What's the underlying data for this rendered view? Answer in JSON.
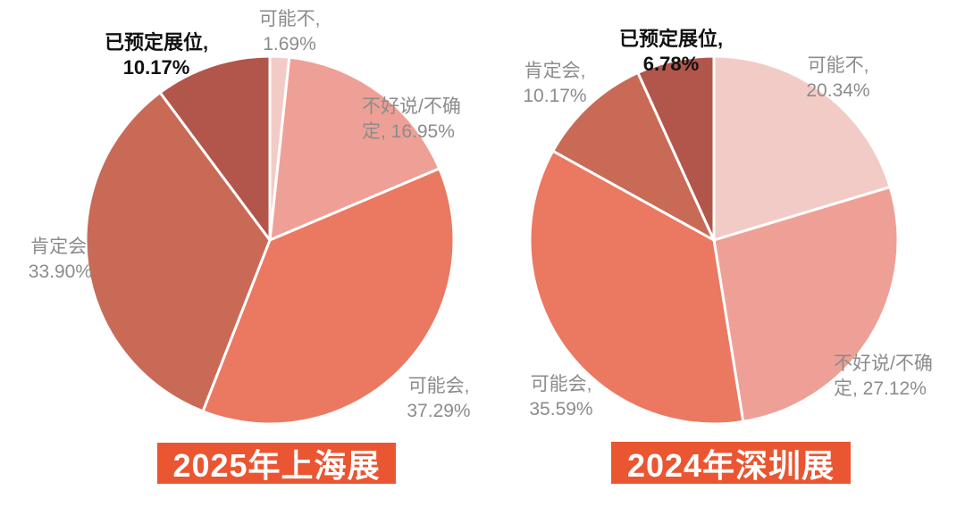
{
  "page": {
    "background": "#ffffff"
  },
  "colors": {
    "banner_background": "#EA5532",
    "banner_text": "#FFFFFF",
    "label_gray": "#8C8C8C",
    "label_emphasis": "#111111",
    "slice_divider": "#FFFFFF"
  },
  "chart_data": [
    {
      "type": "pie",
      "title": "2025年上海展",
      "start_angle_deg": 0,
      "direction": "clockwise",
      "label_position": "outside",
      "slices": [
        {
          "label": "可能不",
          "value_pct": 1.69,
          "display_lines": [
            "可能不,",
            "1.69%"
          ],
          "color": "#F3CBC6",
          "emphasis": false
        },
        {
          "label": "不好说/不确定",
          "value_pct": 16.95,
          "display_lines": [
            "不好说/不确",
            "定, 16.95%"
          ],
          "color": "#EFA096",
          "emphasis": false
        },
        {
          "label": "可能会",
          "value_pct": 37.29,
          "display_lines": [
            "可能会,",
            "37.29%"
          ],
          "color": "#EB7861",
          "emphasis": false
        },
        {
          "label": "肯定会",
          "value_pct": 33.9,
          "display_lines": [
            "肯定会,",
            "33.90%"
          ],
          "color": "#C96A57",
          "emphasis": false
        },
        {
          "label": "已预定展位",
          "value_pct": 10.17,
          "display_lines": [
            "已预定展位,",
            "10.17%"
          ],
          "color": "#B2554A",
          "emphasis": true
        }
      ]
    },
    {
      "type": "pie",
      "title": "2024年深圳展",
      "start_angle_deg": 0,
      "direction": "clockwise",
      "label_position": "outside",
      "slices": [
        {
          "label": "可能不",
          "value_pct": 20.34,
          "display_lines": [
            "可能不,",
            "20.34%"
          ],
          "color": "#F3CBC6",
          "emphasis": false
        },
        {
          "label": "不好说/不确定",
          "value_pct": 27.12,
          "display_lines": [
            "不好说/不确",
            "定, 27.12%"
          ],
          "color": "#EFA096",
          "emphasis": false
        },
        {
          "label": "可能会",
          "value_pct": 35.59,
          "display_lines": [
            "可能会,",
            "35.59%"
          ],
          "color": "#EB7861",
          "emphasis": false
        },
        {
          "label": "肯定会",
          "value_pct": 10.17,
          "display_lines": [
            "肯定会,",
            "10.17%"
          ],
          "color": "#C96A57",
          "emphasis": false
        },
        {
          "label": "已预定展位",
          "value_pct": 6.78,
          "display_lines": [
            "已预定展位,",
            "6.78%"
          ],
          "color": "#B2554A",
          "emphasis": true
        }
      ]
    }
  ]
}
